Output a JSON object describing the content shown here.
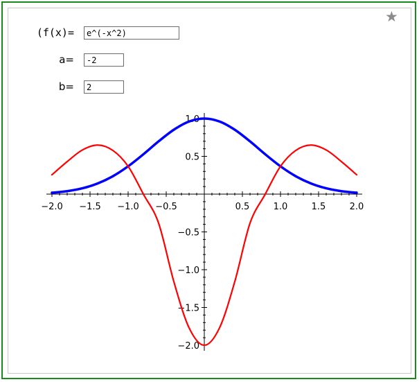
{
  "form": {
    "fx_label": "(f(x)=",
    "fx_value": "e^(-x^2)",
    "a_label": "a=",
    "a_value": "-2",
    "b_label": "b=",
    "b_value": "2"
  },
  "favorite": {
    "icon": "star-icon",
    "glyph": "★"
  },
  "colors": {
    "frame": "#1a8a1a",
    "f_curve": "#0000ff",
    "fpp_curve": "#ff0000",
    "star": "#8c8c8c"
  },
  "chart_data": {
    "type": "line",
    "title": "",
    "xlabel": "",
    "ylabel": "",
    "xlim": [
      -2.0,
      2.0
    ],
    "ylim": [
      -2.0,
      1.0
    ],
    "xticks": [
      "−2.0",
      "−1.5",
      "−1.0",
      "−0.5",
      "0.5",
      "1.0",
      "1.5",
      "2.0"
    ],
    "yticks": [
      "1.0",
      "0.5",
      "−0.5",
      "−1.0",
      "−1.5",
      "−2.0"
    ],
    "grid": false,
    "series": [
      {
        "color": "#0000ff",
        "x": [
          -2.0,
          -1.8,
          -1.6,
          -1.4,
          -1.2,
          -1.0,
          -0.8,
          -0.6,
          -0.4,
          -0.2,
          0.0,
          0.2,
          0.4,
          0.6,
          0.8,
          1.0,
          1.2,
          1.4,
          1.6,
          1.8,
          2.0
        ],
        "y": [
          0.018,
          0.039,
          0.077,
          0.141,
          0.237,
          0.368,
          0.527,
          0.698,
          0.852,
          0.961,
          1.0,
          0.961,
          0.852,
          0.698,
          0.527,
          0.368,
          0.237,
          0.141,
          0.077,
          0.039,
          0.018
        ]
      },
      {
        "color": "#ff0000",
        "x": [
          -2.0,
          -1.8,
          -1.6,
          -1.4,
          -1.2,
          -1.0,
          -0.8,
          -0.6,
          -0.4,
          -0.2,
          0.0,
          0.2,
          0.4,
          0.6,
          0.8,
          1.0,
          1.2,
          1.4,
          1.6,
          1.8,
          2.0
        ],
        "y": [
          0.256,
          0.43,
          0.584,
          0.649,
          0.578,
          0.368,
          0.0,
          -0.384,
          -1.158,
          -1.769,
          -2.0,
          -1.769,
          -1.158,
          -0.384,
          0.0,
          0.368,
          0.578,
          0.649,
          0.584,
          0.43,
          0.256
        ]
      }
    ]
  }
}
